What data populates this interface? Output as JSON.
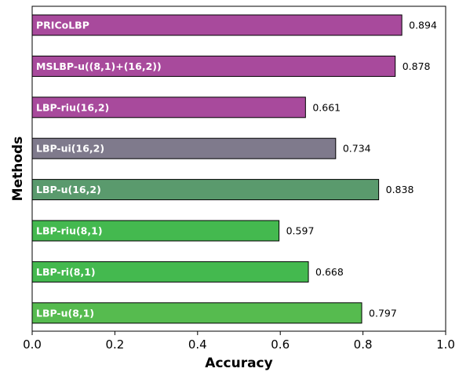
{
  "chart_data": {
    "type": "bar",
    "orientation": "horizontal",
    "xlabel": "Accuracy",
    "ylabel": "Methods",
    "xlim": [
      0.0,
      1.0
    ],
    "xticks": [
      "0.0",
      "0.2",
      "0.4",
      "0.6",
      "0.8",
      "1.0"
    ],
    "grid": false,
    "categories": [
      "PRICoLBP",
      "MSLBP-u((8,1)+(16,2))",
      "LBP-riu(16,2)",
      "LBP-ui(16,2)",
      "LBP-u(16,2)",
      "LBP-riu(8,1)",
      "LBP-ri(8,1)",
      "LBP-u(8,1)"
    ],
    "values": [
      0.894,
      0.878,
      0.661,
      0.734,
      0.838,
      0.597,
      0.668,
      0.797
    ],
    "value_labels": [
      "0.894",
      "0.878",
      "0.661",
      "0.734",
      "0.838",
      "0.597",
      "0.668",
      "0.797"
    ],
    "colors": [
      "#a84a9c",
      "#a84a9c",
      "#a84a9c",
      "#7f7a8c",
      "#5a9a6d",
      "#44b94f",
      "#44b94f",
      "#56bb4f"
    ]
  }
}
